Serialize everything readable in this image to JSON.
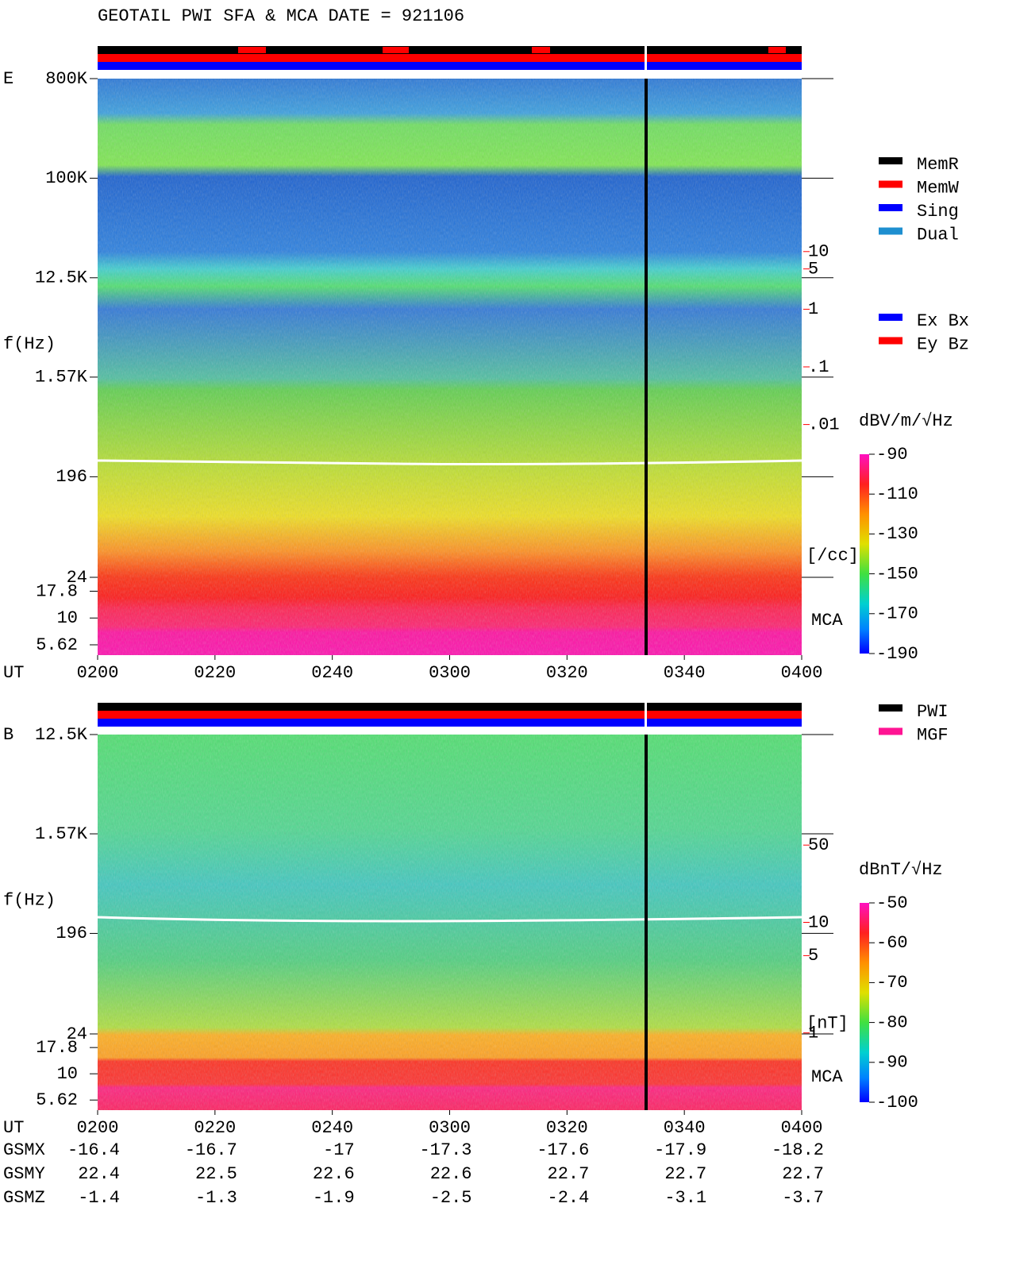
{
  "header": {
    "title": "GEOTAIL   PWI SFA & MCA   DATE = 921106"
  },
  "chart_data": [
    {
      "type": "spectrogram",
      "panel_label": "E",
      "y_label": "f(Hz)",
      "x_label": "UT",
      "y_scale": "log",
      "ylim": [
        24,
        800000
      ],
      "yticks": [
        {
          "value": 800000,
          "label": "800K"
        },
        {
          "value": 100000,
          "label": "100K"
        },
        {
          "value": 12500,
          "label": "12.5K"
        },
        {
          "value": 1570,
          "label": "1.57K"
        },
        196,
        24
      ],
      "mca_label": "MCA",
      "mca_ylim": [
        4.5,
        24
      ],
      "mca_yticks": [
        17.8,
        10,
        5.62
      ],
      "y2lim": [
        1e-06,
        10000
      ],
      "y2ticks": [
        10,
        5,
        1,
        {
          "value": 0.1,
          "label": ".1"
        },
        {
          "value": 0.01,
          "label": ".01"
        }
      ],
      "y2_unit": "[/cc]",
      "y2_color": "#ff0000",
      "xticks": [
        "0200",
        "0220",
        "0240",
        "0300",
        "0320",
        "0340",
        "0400"
      ],
      "colorbar_label": "dBV/m/√Hz",
      "clim": [
        -190,
        -90
      ],
      "colorbar_ticks": [
        -90,
        -110,
        -130,
        -150,
        -170,
        -190
      ],
      "legend": [
        {
          "name": "MemR",
          "color": "#000000"
        },
        {
          "name": "MemW",
          "color": "#ff0000"
        },
        {
          "name": "Sing",
          "color": "#0000ff"
        },
        {
          "name": "Dual",
          "color": "#1e8fd0"
        }
      ],
      "legend2": [
        {
          "name": "Ex Bx",
          "color": "#0000ff"
        },
        {
          "name": "Ey Bz",
          "color": "#ff0000"
        }
      ]
    },
    {
      "type": "spectrogram",
      "panel_label": "B",
      "y_label": "f(Hz)",
      "x_label": "UT",
      "y_scale": "log",
      "ylim": [
        24,
        12500
      ],
      "yticks": [
        {
          "value": 12500,
          "label": "12.5K"
        },
        {
          "value": 1570,
          "label": "1.57K"
        },
        196,
        24
      ],
      "mca_label": "MCA",
      "mca_ylim": [
        4.5,
        24
      ],
      "mca_yticks": [
        17.8,
        10,
        5.62
      ],
      "y2lim": [
        0.2,
        500
      ],
      "y2ticks": [
        50,
        10,
        5,
        1
      ],
      "y2_unit": "[nT]",
      "y2_color": "#ff0000",
      "xticks": [
        "0200",
        "0220",
        "0240",
        "0300",
        "0320",
        "0340",
        "0400"
      ],
      "colorbar_label": "dBnT/√Hz",
      "clim": [
        -100,
        -50
      ],
      "colorbar_ticks": [
        -50,
        -60,
        -70,
        -80,
        -90,
        -100
      ],
      "legend": [
        {
          "name": "PWI",
          "color": "#000000"
        },
        {
          "name": "MGF",
          "color": "#ff1493"
        }
      ]
    }
  ],
  "orbit": {
    "rows": [
      {
        "name": "GSMX",
        "values": [
          -16.4,
          -16.7,
          -17.0,
          -17.3,
          -17.6,
          -17.9,
          -18.2
        ]
      },
      {
        "name": "GSMY",
        "values": [
          22.4,
          22.5,
          22.6,
          22.6,
          22.7,
          22.7,
          22.7
        ]
      },
      {
        "name": "GSMZ",
        "values": [
          -1.4,
          -1.3,
          -1.9,
          -2.5,
          -2.4,
          -3.1,
          -3.7
        ]
      }
    ]
  }
}
